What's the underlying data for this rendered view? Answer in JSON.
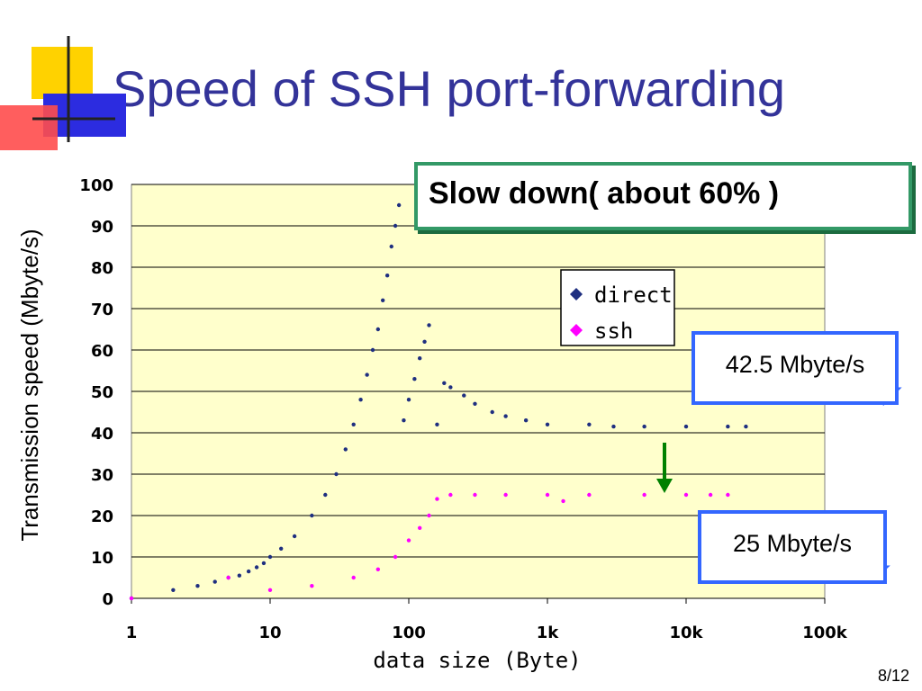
{
  "slide": {
    "title": "Speed of SSH port-forwarding",
    "page_number": "8/12"
  },
  "annotations": {
    "slow_down": "Slow down( about 60% )",
    "direct_speed": "42.5 Mbyte/s",
    "ssh_speed": "25 Mbyte/s"
  },
  "colors": {
    "direct": "#1f2f80",
    "ssh": "#ff00ff",
    "plot_bg": "#ffffcc",
    "arrow": "#008000",
    "title": "#333399"
  },
  "chart_data": {
    "type": "scatter",
    "xlabel": "data size (Byte)",
    "ylabel": "Transmission speed (Mbyte/s)",
    "x_scale": "log",
    "xlim": [
      1,
      100000
    ],
    "ylim": [
      0,
      100
    ],
    "x_ticks": [
      1,
      10,
      100,
      1000,
      10000,
      100000
    ],
    "x_tick_labels": [
      "1",
      "10",
      "100",
      "1k",
      "10k",
      "100k"
    ],
    "y_ticks": [
      0,
      10,
      20,
      30,
      40,
      50,
      60,
      70,
      80,
      90,
      100
    ],
    "y_tick_labels": [
      "0",
      "10",
      "20",
      "30",
      "40",
      "50",
      "60",
      "70",
      "80",
      "90",
      "100"
    ],
    "grid": "horizontal",
    "legend_position": "upper-right",
    "series": [
      {
        "name": "direct",
        "points": [
          [
            1,
            0
          ],
          [
            2,
            2
          ],
          [
            3,
            3
          ],
          [
            4,
            4
          ],
          [
            5,
            5
          ],
          [
            6,
            5.5
          ],
          [
            7,
            6.5
          ],
          [
            8,
            7.5
          ],
          [
            9,
            8.5
          ],
          [
            10,
            10
          ],
          [
            12,
            12
          ],
          [
            15,
            15
          ],
          [
            20,
            20
          ],
          [
            25,
            25
          ],
          [
            30,
            30
          ],
          [
            35,
            36
          ],
          [
            40,
            42
          ],
          [
            45,
            48
          ],
          [
            50,
            54
          ],
          [
            55,
            60
          ],
          [
            60,
            65
          ],
          [
            65,
            72
          ],
          [
            70,
            78
          ],
          [
            75,
            85
          ],
          [
            80,
            90
          ],
          [
            85,
            95
          ],
          [
            92,
            43
          ],
          [
            100,
            48
          ],
          [
            110,
            53
          ],
          [
            120,
            58
          ],
          [
            130,
            62
          ],
          [
            140,
            66
          ],
          [
            160,
            42
          ],
          [
            180,
            52
          ],
          [
            200,
            51
          ],
          [
            250,
            49
          ],
          [
            300,
            47
          ],
          [
            400,
            45
          ],
          [
            500,
            44
          ],
          [
            700,
            43
          ],
          [
            1000,
            42
          ],
          [
            2000,
            42
          ],
          [
            3000,
            41.5
          ],
          [
            5000,
            41.5
          ],
          [
            10000,
            41.5
          ],
          [
            20000,
            41.5
          ],
          [
            27000,
            41.5
          ]
        ]
      },
      {
        "name": "ssh",
        "points": [
          [
            1,
            0
          ],
          [
            5,
            5
          ],
          [
            10,
            2
          ],
          [
            20,
            3
          ],
          [
            40,
            5
          ],
          [
            60,
            7
          ],
          [
            80,
            10
          ],
          [
            100,
            14
          ],
          [
            120,
            17
          ],
          [
            140,
            20
          ],
          [
            160,
            24
          ],
          [
            200,
            25
          ],
          [
            300,
            25
          ],
          [
            500,
            25
          ],
          [
            1000,
            25
          ],
          [
            1300,
            23.5
          ],
          [
            2000,
            25
          ],
          [
            5000,
            25
          ],
          [
            10000,
            25
          ],
          [
            15000,
            25
          ],
          [
            20000,
            25
          ]
        ]
      }
    ]
  }
}
